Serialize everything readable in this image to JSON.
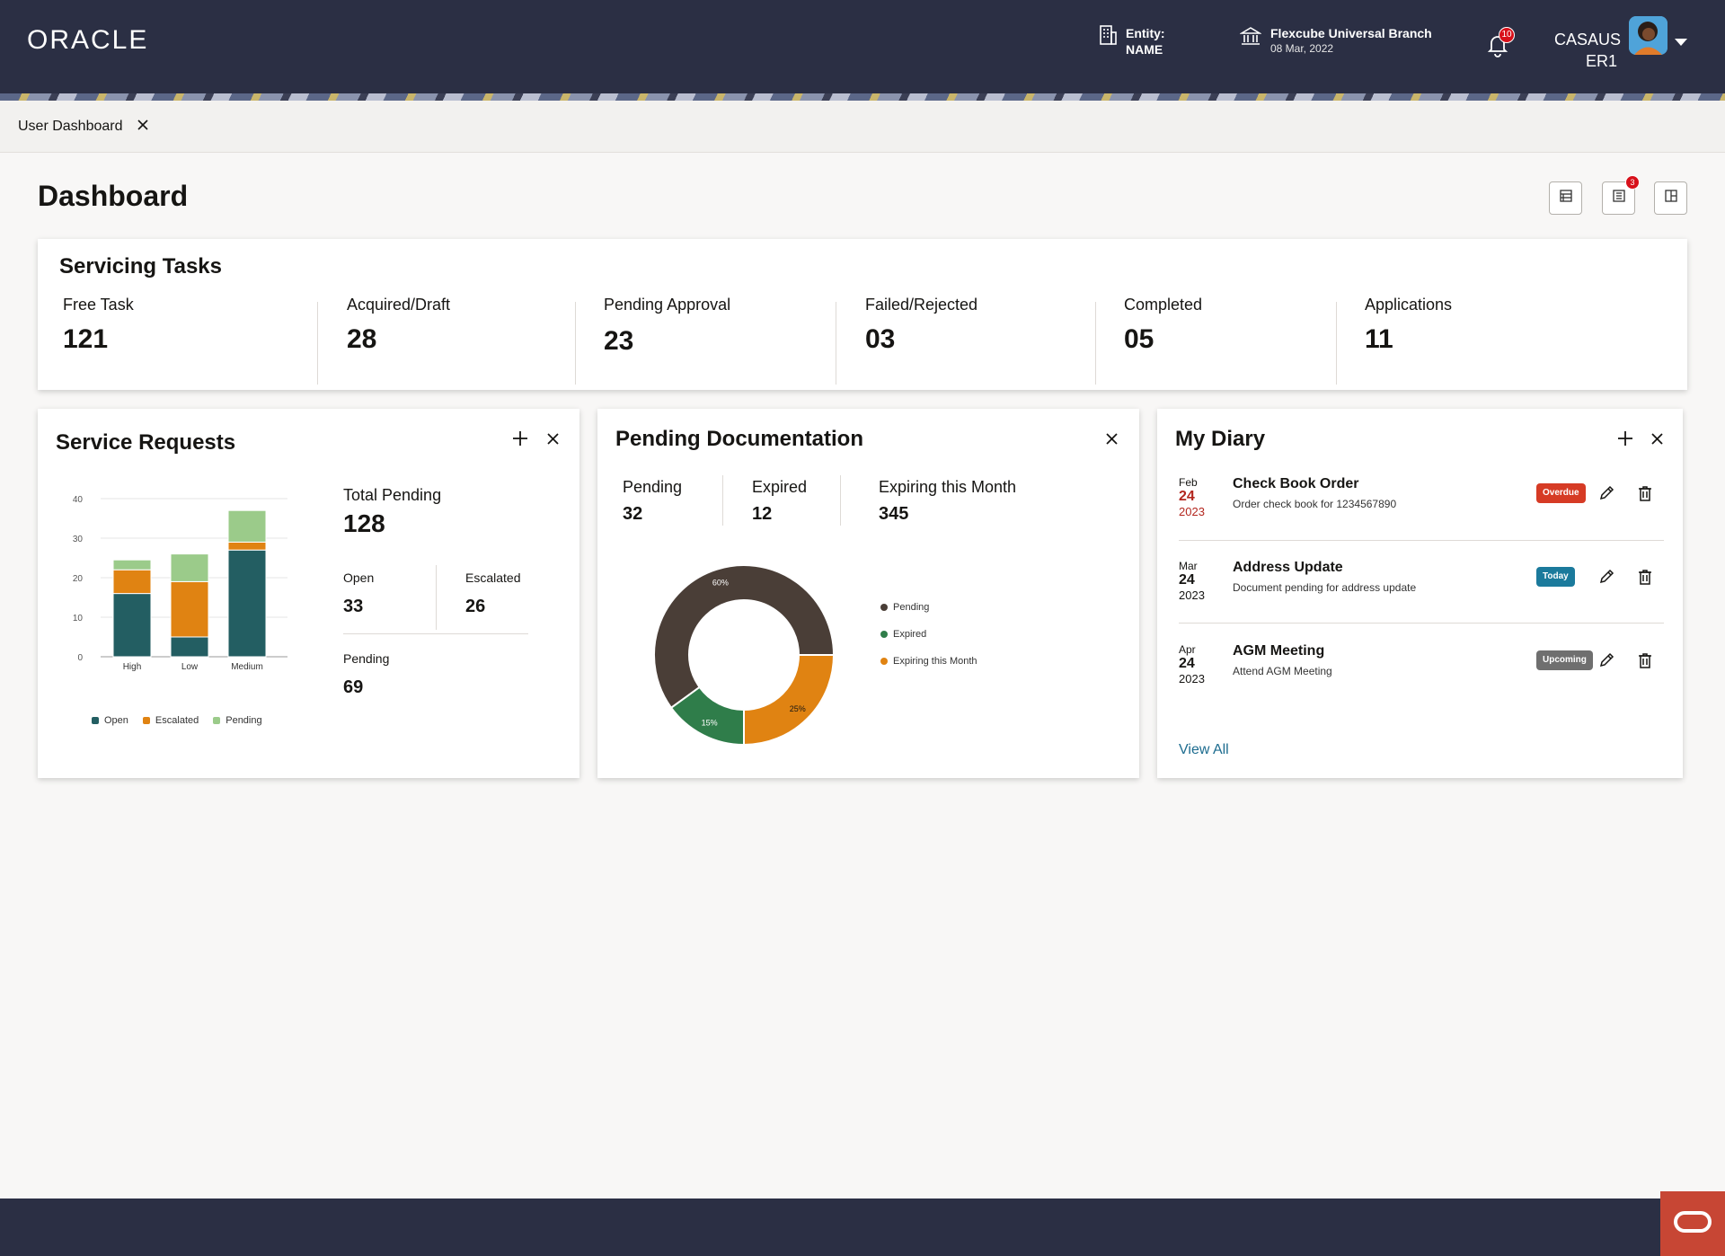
{
  "header": {
    "logo_text": "ORACLE",
    "entity_label": "Entity:",
    "entity_value": "NAME",
    "branch_name": "Flexcube Universal Branch",
    "branch_date": "08 Mar, 2022",
    "notification_count": "10",
    "user_line1": "CASAUS",
    "user_line2": "ER1"
  },
  "tabs": [
    {
      "label": "User Dashboard"
    }
  ],
  "page": {
    "title": "Dashboard",
    "toolbar_badge": "3"
  },
  "servicing_tasks": {
    "title": "Servicing Tasks",
    "items": [
      {
        "label": "Free Task",
        "value": "121"
      },
      {
        "label": "Acquired/Draft",
        "value": "28"
      },
      {
        "label": "Pending Approval",
        "value": "23"
      },
      {
        "label": "Failed/Rejected",
        "value": "03"
      },
      {
        "label": "Completed",
        "value": "05"
      },
      {
        "label": "Applications",
        "value": "11"
      }
    ]
  },
  "service_requests": {
    "title": "Service Requests",
    "total_label": "Total Pending",
    "total_value": "128",
    "open_label": "Open",
    "open_value": "33",
    "escalated_label": "Escalated",
    "escalated_value": "26",
    "pending_label": "Pending",
    "pending_value": "69"
  },
  "pending_documentation": {
    "title": "Pending Documentation",
    "stats": [
      {
        "label": "Pending",
        "value": "32"
      },
      {
        "label": "Expired",
        "value": "12"
      },
      {
        "label": "Expiring this Month",
        "value": "345"
      }
    ]
  },
  "diary": {
    "title": "My Diary",
    "entries": [
      {
        "month": "Feb",
        "day": "24",
        "year": "2023",
        "title": "Check Book Order",
        "subtitle": "Order check book for 1234567890",
        "status": "Overdue",
        "status_color": "#d63b25",
        "date_color": "#b3261e"
      },
      {
        "month": "Mar",
        "day": "24",
        "year": "2023",
        "title": "Address Update",
        "subtitle": "Document pending for address update",
        "status": "Today",
        "status_color": "#1b7a9c",
        "date_color": "#161513"
      },
      {
        "month": "Apr",
        "day": "24",
        "year": "2023",
        "title": "AGM Meeting",
        "subtitle": "Attend AGM Meeting",
        "status": "Upcoming",
        "status_color": "#6f6f6f",
        "date_color": "#161513"
      }
    ],
    "view_all": "View All"
  },
  "colors": {
    "header_bg": "#2b2f44",
    "open": "#235e62",
    "escalated": "#e08312",
    "pending": "#9bcb8a",
    "donut_pending": "#4a3e37",
    "donut_expired": "#2f7d4a",
    "donut_expiring": "#e08312"
  },
  "chart_data": [
    {
      "type": "bar",
      "stacked": true,
      "categories": [
        "High",
        "Low",
        "Medium"
      ],
      "series": [
        {
          "name": "Open",
          "values": [
            16,
            5,
            27
          ]
        },
        {
          "name": "Escalated",
          "values": [
            6,
            14,
            2
          ]
        },
        {
          "name": "Pending",
          "values": [
            2.5,
            7,
            8
          ]
        }
      ],
      "ylim": [
        0,
        40
      ],
      "yticks": [
        0,
        10,
        20,
        30,
        40
      ],
      "grid": true,
      "legend": "bottom"
    },
    {
      "type": "pie",
      "donut": true,
      "slices": [
        {
          "name": "Pending",
          "value": 60,
          "label": "60%"
        },
        {
          "name": "Expiring this Month",
          "value": 25,
          "label": "25%"
        },
        {
          "name": "Expired",
          "value": 15,
          "label": "15%"
        }
      ],
      "legend": [
        "Pending",
        "Expired",
        "Expiring this Month"
      ],
      "legend_position": "right"
    }
  ]
}
